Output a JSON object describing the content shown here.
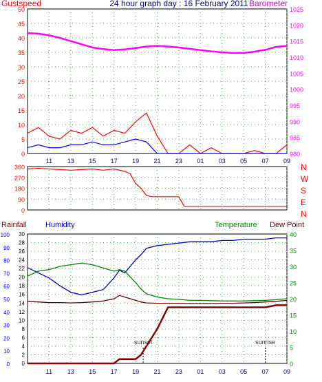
{
  "header": {
    "left_label": "Gustspeed",
    "title": "24 hour graph day : 16 February 2011",
    "right_label": "Barometer"
  },
  "colors": {
    "gust": "#ff0000",
    "wind_avg": "#0000ff",
    "wind_green": "#009900",
    "barometer": "#ff00ff",
    "direction": "#ff0000",
    "humidity": "#0000cc",
    "temperature": "#008800",
    "dewpoint": "#660000",
    "rainfall": "#880000",
    "axis_left": "#ff0000",
    "axis_right": "#ff00ff",
    "axis_hum": "#0000ff",
    "axis_temp": "#008800",
    "grid": "#44aa44",
    "time_label": "#000080"
  },
  "x_hours": [
    "11",
    "13",
    "15",
    "17",
    "19",
    "21",
    "23",
    "01",
    "03",
    "05",
    "07",
    "09"
  ],
  "chart_data": [
    {
      "type": "line",
      "title": "24 hour graph day : 16 February 2011",
      "left_axis": {
        "label": "Gustspeed",
        "ticks": [
          0,
          5,
          10,
          15,
          20,
          25,
          30,
          35,
          40,
          45,
          50
        ],
        "ylim": [
          0,
          50
        ]
      },
      "right_axis": {
        "label": "Barometer",
        "ticks": [
          980,
          985,
          990,
          995,
          1000,
          1005,
          1010,
          1015,
          1020,
          1025
        ],
        "ylim": [
          980,
          1025
        ]
      },
      "x": [
        9,
        10,
        11,
        12,
        13,
        14,
        15,
        16,
        17,
        18,
        19,
        20,
        21,
        22,
        23,
        24,
        25,
        26,
        27,
        28,
        29,
        30,
        31,
        32,
        33
      ],
      "series": [
        {
          "name": "Barometer",
          "axis": "right",
          "values": [
            1017.5,
            1017.3,
            1016.8,
            1016,
            1015,
            1014,
            1013,
            1012.5,
            1012.2,
            1012.4,
            1012.8,
            1013.3,
            1013.5,
            1013.3,
            1013,
            1012.6,
            1012.2,
            1011.8,
            1011.5,
            1011.3,
            1011.3,
            1011.7,
            1012.3,
            1013.2,
            1013.5
          ]
        },
        {
          "name": "",
          "axis": "left",
          "values": [
            7,
            9,
            6,
            5,
            8,
            7,
            9,
            6,
            8,
            7,
            11,
            14,
            6,
            0,
            0,
            3,
            0,
            2,
            0,
            0,
            0,
            1,
            0,
            0,
            3
          ]
        },
        {
          "name": "",
          "axis": "left",
          "values": [
            2,
            3,
            2,
            2,
            3,
            3,
            4,
            3,
            3,
            4,
            5,
            4,
            0,
            0,
            0,
            0,
            0,
            0,
            0,
            0,
            0,
            0,
            0,
            0,
            0
          ]
        }
      ]
    },
    {
      "type": "line",
      "left_axis": {
        "ticks": [
          0,
          90,
          180,
          270,
          360
        ],
        "ylim": [
          0,
          360
        ]
      },
      "right_axis": {
        "ticks": [
          "N",
          "W",
          "S",
          "E",
          "N"
        ]
      },
      "x": [
        9,
        10,
        11,
        12,
        13,
        14,
        15,
        16,
        17,
        18,
        18.5,
        19,
        19.5,
        20,
        20.5,
        21,
        22,
        23,
        23.5,
        24,
        26,
        28,
        30,
        32,
        33
      ],
      "series": [
        {
          "name": "",
          "values": [
            340,
            345,
            340,
            335,
            330,
            335,
            340,
            330,
            340,
            320,
            300,
            220,
            180,
            120,
            110,
            110,
            110,
            110,
            30,
            30,
            30,
            30,
            30,
            30,
            30
          ]
        }
      ]
    },
    {
      "type": "line",
      "labels": {
        "rainfall": "Rainfall",
        "humidity": "Humidity",
        "temperature": "Temperature",
        "dewpoint": "Dew Point"
      },
      "left_axis_humidity": {
        "label": "Humidity",
        "ticks": [
          0,
          10,
          20,
          30,
          40,
          50,
          60,
          70,
          80,
          90,
          100
        ],
        "ylim": [
          0,
          100
        ]
      },
      "left_axis_rainfall": {
        "label": "Rainfall",
        "ticks": [
          0,
          2,
          4,
          6,
          8,
          10,
          12,
          14,
          16,
          18,
          20,
          22,
          24,
          26,
          28,
          30
        ],
        "ylim": [
          0,
          30
        ]
      },
      "right_axis": {
        "label": "Temperature / Dew Point",
        "ticks": [
          0,
          5,
          10,
          15,
          20,
          25,
          30,
          35,
          40
        ],
        "ylim": [
          0,
          40
        ]
      },
      "annotations": [
        "sunset",
        "sunrise"
      ],
      "x": [
        9,
        10,
        11,
        12,
        13,
        14,
        15,
        16,
        17,
        17.5,
        18,
        19,
        19.5,
        20,
        21,
        22,
        23,
        24,
        25,
        26,
        27,
        28,
        29,
        30,
        31,
        32,
        33
      ],
      "series": [
        {
          "name": "Humidity",
          "axis": "humidity",
          "values": [
            74,
            70,
            66,
            60,
            55,
            53,
            55,
            57,
            66,
            72,
            70,
            80,
            84,
            89,
            91,
            92,
            93,
            94,
            94,
            94,
            95,
            95,
            96,
            96,
            96,
            97,
            97
          ]
        },
        {
          "name": "Temperature",
          "axis": "temp",
          "values": [
            27,
            28.5,
            29,
            30,
            30.5,
            31,
            30.5,
            29.5,
            28.5,
            29,
            28.5,
            25,
            23,
            21.5,
            20.5,
            20,
            19.8,
            19.5,
            19.5,
            19.4,
            19.3,
            19.3,
            19.3,
            19.4,
            19.5,
            19.7,
            20
          ]
        },
        {
          "name": "Dew Point",
          "axis": "temp",
          "values": [
            19.2,
            19,
            18.8,
            18.8,
            18.7,
            18.8,
            19,
            19.3,
            20,
            21,
            20.5,
            19.5,
            19,
            18.7,
            18.6,
            18.6,
            18.6,
            18.5,
            18.5,
            18.5,
            18.6,
            18.6,
            18.7,
            18.8,
            19,
            19.2,
            19.5
          ]
        },
        {
          "name": "Rainfall",
          "axis": "rainfall",
          "values": [
            0,
            0,
            0,
            0,
            0,
            0,
            0,
            0,
            0,
            1,
            1,
            1,
            2,
            4,
            8,
            13,
            13,
            13,
            13,
            13,
            13,
            13,
            13,
            13,
            13,
            13.5,
            13.5
          ]
        }
      ]
    }
  ]
}
